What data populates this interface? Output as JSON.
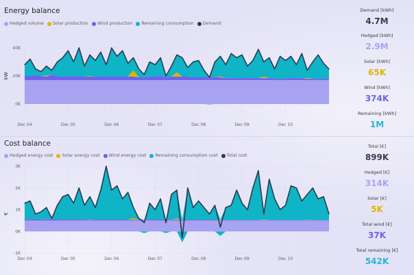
{
  "colors": {
    "hedged": "#a7a3f1",
    "solar": "#e0b400",
    "wind": "#6b63ee",
    "remaining": "#0fb4c6",
    "demand": "#2b3a4f",
    "total": "#8a89a6"
  },
  "energy": {
    "title": "Energy balance",
    "legend": [
      {
        "label": "Hedged volume",
        "color": "#a7a3f1"
      },
      {
        "label": "Solar production",
        "color": "#e0b400"
      },
      {
        "label": "Wind production",
        "color": "#6b63ee"
      },
      {
        "label": "Remaining consumption",
        "color": "#0fb4c6"
      },
      {
        "label": "Demand",
        "color": "#2b3a4f"
      }
    ],
    "kpis": [
      {
        "label": "Demand [kWh]",
        "value": "4.7M",
        "color": "#3b3a4f"
      },
      {
        "label": "Hedged [kWh]",
        "value": "2.9M",
        "color": "#a7a3f1"
      },
      {
        "label": "Solar [kWh]",
        "value": "65K",
        "color": "#e0b400"
      },
      {
        "label": "Wind [kWh]",
        "value": "374K",
        "color": "#6b63ee"
      },
      {
        "label": "Remaining [kWh]",
        "value": "1M",
        "color": "#2bb6d0"
      }
    ]
  },
  "cost": {
    "title": "Cost balance",
    "legend": [
      {
        "label": "Hedged energy cost",
        "color": "#a7a3f1"
      },
      {
        "label": "Solar energy cost",
        "color": "#e0b400"
      },
      {
        "label": "Wind energy cost",
        "color": "#6b63ee"
      },
      {
        "label": "Remaining consumption cost",
        "color": "#0fb4c6"
      },
      {
        "label": "Total cost",
        "color": "#2b3a4f"
      }
    ],
    "kpis": [
      {
        "label": "Total [€]",
        "value": "899K",
        "color": "#3b3a4f"
      },
      {
        "label": "Hedged [€]",
        "value": "314K",
        "color": "#a7a3f1"
      },
      {
        "label": "Solar [€]",
        "value": "5K",
        "color": "#e0b400"
      },
      {
        "label": "Total wind [€]",
        "value": "37K",
        "color": "#6b63ee"
      },
      {
        "label": "Total remaining [€]",
        "value": "542K",
        "color": "#2bb6d0"
      }
    ]
  },
  "chart_data": [
    {
      "type": "area",
      "ylabel": "kW",
      "ylim": [
        0,
        40000
      ],
      "yticks": [
        "0K",
        "20K",
        "40K"
      ],
      "xticks": [
        "Dec 04",
        "Dec 05",
        "Dec 06",
        "Dec 07",
        "Dec 08",
        "Dec 09",
        "Dec 10"
      ],
      "x_step_hours": 3,
      "grid": true,
      "series": [
        {
          "name": "Hedged volume",
          "values": [
            17,
            17,
            17,
            17,
            17,
            17,
            17,
            17,
            17,
            17,
            17,
            17,
            17,
            17,
            17,
            17,
            17,
            17,
            17,
            17,
            17,
            17,
            17,
            17,
            17,
            17,
            17,
            17,
            17,
            17,
            17,
            17,
            17,
            17,
            17,
            17,
            17,
            17,
            17,
            17,
            17,
            17,
            17,
            17,
            17,
            17,
            17,
            17,
            17,
            17,
            17,
            17,
            17,
            17,
            17,
            17,
            17
          ]
        },
        {
          "name": "Wind production",
          "values": [
            3,
            3,
            3.5,
            3,
            2.5,
            4,
            3,
            2.5,
            2.5,
            3,
            2.5,
            2.5,
            2.5,
            2.5,
            2.5,
            2.5,
            2.5,
            2.5,
            2.5,
            2.5,
            2.5,
            2,
            2,
            2.5,
            2.5,
            3,
            2,
            2.5,
            2.5,
            2.5,
            2.5,
            2,
            2,
            2,
            2.5,
            2,
            2,
            1.5,
            1.5,
            1.5,
            1.5,
            1.5,
            1.5,
            1.5,
            1.5,
            1.5,
            1,
            1,
            1,
            1.5,
            1.5,
            1.5,
            1,
            1,
            1,
            1,
            1
          ]
        },
        {
          "name": "Solar production",
          "values": [
            0,
            0,
            0,
            0,
            0.7,
            0,
            0,
            0,
            0,
            0,
            0,
            0,
            0.5,
            0,
            0,
            0,
            0,
            0,
            0,
            0,
            4.5,
            0,
            0,
            0,
            0,
            0,
            0,
            0,
            3,
            0,
            0,
            0,
            0,
            0,
            0,
            0,
            0.6,
            0,
            0,
            0,
            0,
            0,
            0,
            0,
            1,
            0,
            0,
            0,
            0,
            0,
            0,
            0,
            0.5,
            0,
            0,
            0,
            0
          ]
        },
        {
          "name": "Demand",
          "values": [
            28,
            32,
            25,
            23,
            27,
            24,
            30,
            33,
            38,
            30,
            40,
            27,
            35,
            31,
            37,
            28,
            40,
            34,
            38,
            29,
            33,
            25,
            21,
            30,
            28,
            33,
            20,
            27,
            35,
            33,
            26,
            30,
            31,
            24,
            19,
            30,
            34,
            28,
            36,
            33,
            35,
            27,
            31,
            39,
            30,
            33,
            25,
            34,
            31,
            34,
            28,
            36,
            24,
            30,
            35,
            29,
            25
          ]
        }
      ]
    },
    {
      "type": "area",
      "ylabel": "€",
      "ylim": [
        -1000,
        3000
      ],
      "yticks": [
        "-1K",
        "0K",
        "1K",
        "2K",
        "3K"
      ],
      "xticks": [
        "Dec 04",
        "Dec 05",
        "Dec 06",
        "Dec 07",
        "Dec 08",
        "Dec 09",
        "Dec 10"
      ],
      "x_step_hours": 3,
      "grid": true,
      "series": [
        {
          "name": "Hedged energy cost",
          "values": [
            0.5,
            0.5,
            0.5,
            0.5,
            0.5,
            0.5,
            0.5,
            0.5,
            0.5,
            0.5,
            0.5,
            0.5,
            0.5,
            0.5,
            0.5,
            0.5,
            0.5,
            0.5,
            0.5,
            0.5,
            0.5,
            0.5,
            0.5,
            0.5,
            0.5,
            0.5,
            0.5,
            0.5,
            0.5,
            0.5,
            0.5,
            0.5,
            0.5,
            0.5,
            0.5,
            0.5,
            0.5,
            0.5,
            0.5,
            0.5,
            0.5,
            0.5,
            0.5,
            0.5,
            0.5,
            0.5,
            0.5,
            0.5,
            0.5,
            0.5,
            0.5,
            0.5,
            0.5,
            0.5,
            0.5,
            0.5,
            0.5
          ]
        },
        {
          "name": "Wind energy cost",
          "values": [
            0.05,
            0.05,
            0.06,
            0.05,
            0.05,
            0.07,
            0.05,
            0.04,
            0.04,
            0.05,
            0.04,
            0.04,
            0.04,
            0.04,
            0.04,
            0.04,
            0.04,
            0.04,
            0.04,
            0.04,
            0.04,
            0.03,
            0.03,
            0.04,
            0.04,
            0.05,
            0.03,
            0.04,
            0.04,
            0.04,
            0.04,
            0.03,
            0.03,
            0.03,
            0.04,
            0.03,
            0.03,
            0.02,
            0.02,
            0.02,
            0.02,
            0.02,
            0.02,
            0.02,
            0.02,
            0.02,
            0.02,
            0.02,
            0.02,
            0.02,
            0.02,
            0.02,
            0.02,
            0.02,
            0.02,
            0.02,
            0.02
          ]
        },
        {
          "name": "Solar energy cost",
          "values": [
            0,
            0,
            0,
            0,
            0.01,
            0,
            0,
            0,
            0,
            0,
            0,
            0,
            0.01,
            0,
            0,
            0,
            0,
            0,
            0,
            0,
            0.08,
            0,
            0,
            0,
            0,
            0,
            0,
            0,
            0.05,
            0,
            0,
            0,
            0,
            0,
            0,
            0,
            0.02,
            0,
            0,
            0,
            0,
            0,
            0,
            0,
            0.02,
            0,
            0,
            0,
            0,
            0,
            0,
            0,
            0.01,
            0,
            0,
            0,
            0
          ]
        },
        {
          "name": "Total cost",
          "values": [
            1.3,
            1.4,
            0.8,
            0.9,
            1.1,
            0.6,
            1.2,
            1.6,
            1.7,
            1.3,
            2.0,
            1.2,
            1.6,
            1.1,
            1.9,
            3.0,
            1.9,
            2.1,
            1.5,
            1.8,
            1.1,
            0.6,
            0.4,
            1.3,
            1.0,
            1.5,
            0.4,
            1.7,
            1.9,
            -0.3,
            2.0,
            1.1,
            1.4,
            1.1,
            0.8,
            1.2,
            0.2,
            1.1,
            1.2,
            1.9,
            1.3,
            1.0,
            2.0,
            2.8,
            0.8,
            2.4,
            1.5,
            1.0,
            1.2,
            2.1,
            2.0,
            1.4,
            1.7,
            2.0,
            1.5,
            1.6,
            0.8
          ]
        }
      ]
    }
  ]
}
